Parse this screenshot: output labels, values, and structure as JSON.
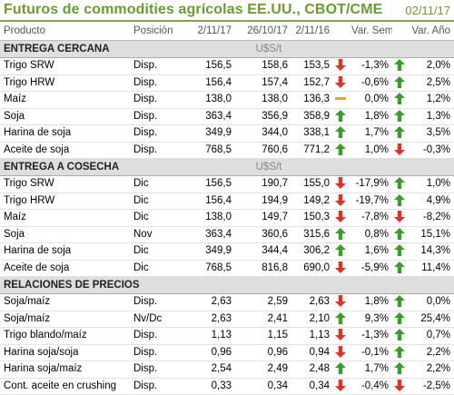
{
  "header": {
    "title": "Futuros de commodities agrícolas EE.UU., CBOT/CME",
    "date": "02/11/17"
  },
  "columns": [
    "Producto",
    "Posición",
    "2/11/17",
    "26/10/17",
    "2/11/16",
    "Var. Sem.",
    "Var. Año"
  ],
  "sections": [
    {
      "name": "ENTREGA CERCANA",
      "unit": "U$S/t",
      "rows": [
        {
          "producto": "Trigo SRW",
          "posicion": "Disp.",
          "v1": "156,5",
          "v2": "158,6",
          "v3": "153,5",
          "ind_v3": "down",
          "sem": "-1,3%",
          "ind_sem": "up",
          "anio": "2,0%"
        },
        {
          "producto": "Trigo HRW",
          "posicion": "Disp.",
          "v1": "156,4",
          "v2": "157,4",
          "v3": "152,7",
          "ind_v3": "down",
          "sem": "-0,6%",
          "ind_sem": "up",
          "anio": "2,5%"
        },
        {
          "producto": "Maíz",
          "posicion": "Disp.",
          "v1": "138,0",
          "v2": "138,0",
          "v3": "136,3",
          "ind_v3": "flat",
          "sem": "0,0%",
          "ind_sem": "up",
          "anio": "1,2%"
        },
        {
          "producto": "Soja",
          "posicion": "Disp.",
          "v1": "363,4",
          "v2": "356,9",
          "v3": "358,9",
          "ind_v3": "up",
          "sem": "1,8%",
          "ind_sem": "up",
          "anio": "1,3%"
        },
        {
          "producto": "Harina de soja",
          "posicion": "Disp.",
          "v1": "349,9",
          "v2": "344,0",
          "v3": "338,1",
          "ind_v3": "up",
          "sem": "1,7%",
          "ind_sem": "up",
          "anio": "3,5%"
        },
        {
          "producto": "Aceite de soja",
          "posicion": "Disp.",
          "v1": "768,5",
          "v2": "760,6",
          "v3": "771,2",
          "ind_v3": "up",
          "sem": "1,0%",
          "ind_sem": "down",
          "anio": "-0,3%"
        }
      ]
    },
    {
      "name": "ENTREGA A COSECHA",
      "unit": "U$S/t",
      "rows": [
        {
          "producto": "Trigo SRW",
          "posicion": "Dic",
          "v1": "156,5",
          "v2": "190,7",
          "v3": "155,0",
          "ind_v3": "down",
          "sem": "-17,9%",
          "ind_sem": "up",
          "anio": "1,0%"
        },
        {
          "producto": "Trigo HRW",
          "posicion": "Dic",
          "v1": "156,4",
          "v2": "194,9",
          "v3": "149,2",
          "ind_v3": "down",
          "sem": "-19,7%",
          "ind_sem": "up",
          "anio": "4,9%"
        },
        {
          "producto": "Maíz",
          "posicion": "Dic",
          "v1": "138,0",
          "v2": "149,7",
          "v3": "150,3",
          "ind_v3": "down",
          "sem": "-7,8%",
          "ind_sem": "down",
          "anio": "-8,2%"
        },
        {
          "producto": "Soja",
          "posicion": "Nov",
          "v1": "363,4",
          "v2": "360,6",
          "v3": "315,6",
          "ind_v3": "up",
          "sem": "0,8%",
          "ind_sem": "up",
          "anio": "15,1%"
        },
        {
          "producto": "Harina de soja",
          "posicion": "Dic",
          "v1": "349,9",
          "v2": "344,4",
          "v3": "306,2",
          "ind_v3": "up",
          "sem": "1,6%",
          "ind_sem": "up",
          "anio": "14,3%"
        },
        {
          "producto": "Aceite de soja",
          "posicion": "Dic",
          "v1": "768,5",
          "v2": "816,8",
          "v3": "690,0",
          "ind_v3": "down",
          "sem": "-5,9%",
          "ind_sem": "up",
          "anio": "11,4%"
        }
      ]
    },
    {
      "name": "RELACIONES DE PRECIOS",
      "unit": "",
      "rows": [
        {
          "producto": "Soja/maíz",
          "posicion": "Disp.",
          "v1": "2,63",
          "v2": "2,59",
          "v3": "2,63",
          "ind_v3": "down",
          "sem": "1,8%",
          "ind_sem": "up",
          "anio": "0,0%"
        },
        {
          "producto": "Soja/maíz",
          "posicion": "Nv/Dc",
          "v1": "2,63",
          "v2": "2,41",
          "v3": "2,10",
          "ind_v3": "up",
          "sem": "9,3%",
          "ind_sem": "up",
          "anio": "25,4%"
        },
        {
          "producto": "Trigo blando/maíz",
          "posicion": "Disp.",
          "v1": "1,13",
          "v2": "1,15",
          "v3": "1,13",
          "ind_v3": "down",
          "sem": "-1,3%",
          "ind_sem": "up",
          "anio": "0,7%"
        },
        {
          "producto": "Harina soja/soja",
          "posicion": "Disp.",
          "v1": "0,96",
          "v2": "0,96",
          "v3": "0,94",
          "ind_v3": "down",
          "sem": "-0,1%",
          "ind_sem": "up",
          "anio": "2,2%"
        },
        {
          "producto": "Harina soja/maíz",
          "posicion": "Disp.",
          "v1": "2,54",
          "v2": "2,49",
          "v3": "2,48",
          "ind_v3": "up",
          "sem": "1,7%",
          "ind_sem": "up",
          "anio": "2,2%"
        },
        {
          "producto": "Cont. aceite en crushing",
          "posicion": "Disp.",
          "v1": "0,33",
          "v2": "0,34",
          "v3": "0,34",
          "ind_v3": "down",
          "sem": "-0,4%",
          "ind_sem": "down",
          "anio": "-2,5%"
        }
      ]
    }
  ],
  "colors": {
    "up": "#3f9a2e",
    "down": "#d9342b",
    "flat": "#f0a800",
    "accent": "#6a9a34"
  },
  "icons": {
    "up": "arrow-up-icon",
    "down": "arrow-down-icon",
    "flat": "flat-dash-icon"
  }
}
